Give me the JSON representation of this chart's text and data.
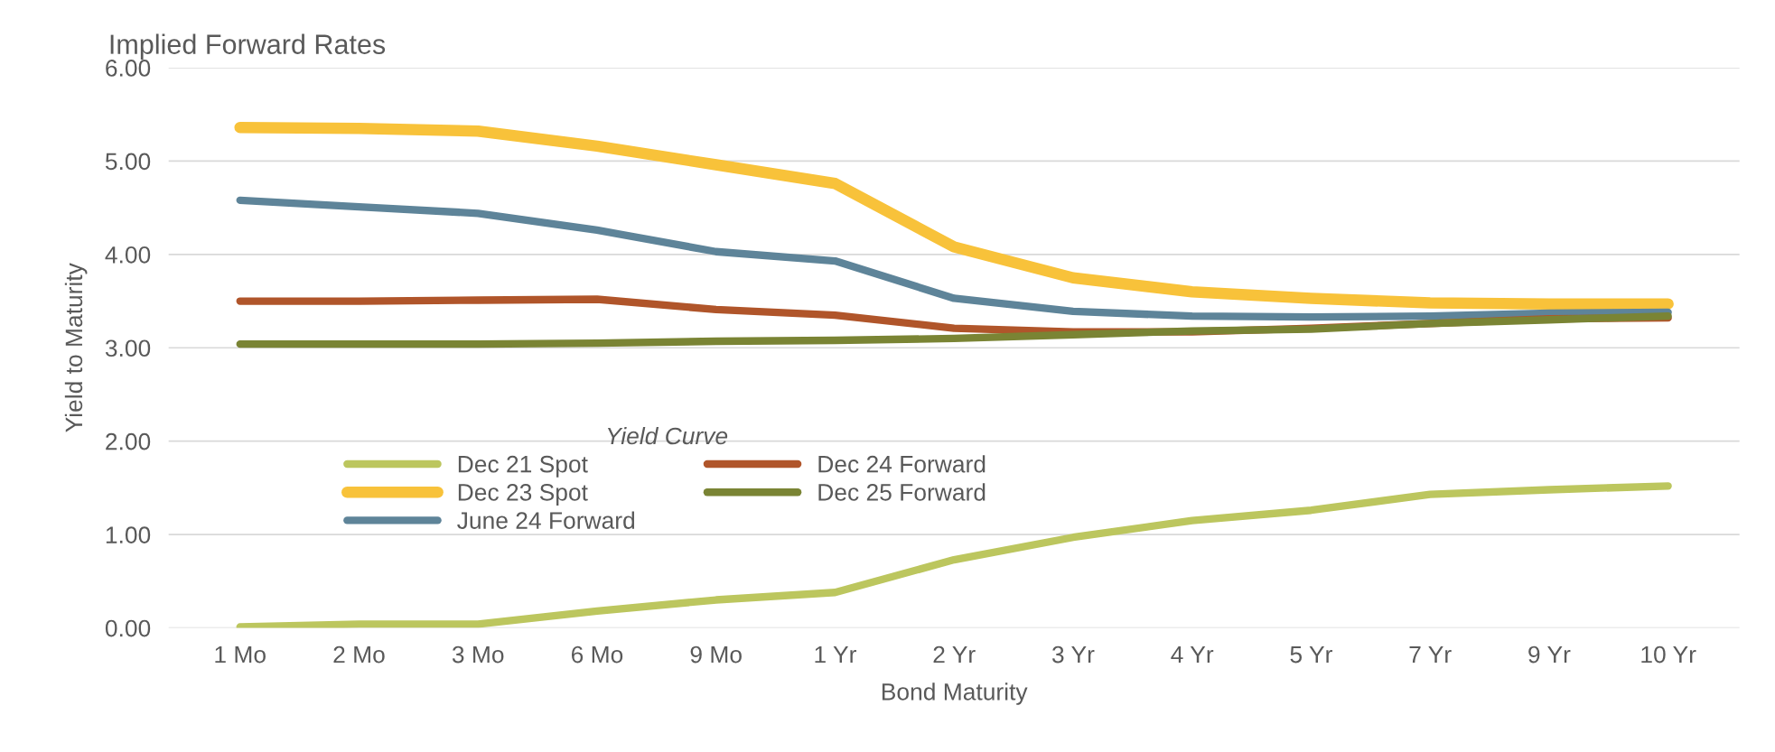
{
  "chart_data": {
    "type": "line",
    "title": "Implied Forward Rates",
    "xlabel": "Bond Maturity",
    "ylabel": "Yield to Maturity",
    "legend_title": "Yield Curve",
    "categories": [
      "1 Mo",
      "2 Mo",
      "3 Mo",
      "6 Mo",
      "9 Mo",
      "1 Yr",
      "2 Yr",
      "3 Yr",
      "4 Yr",
      "5 Yr",
      "7 Yr",
      "9 Yr",
      "10 Yr"
    ],
    "series": [
      {
        "name": "Dec 21 Spot",
        "color": "#bcc65e",
        "values": [
          0.01,
          0.04,
          0.04,
          0.18,
          0.3,
          0.38,
          0.73,
          0.97,
          1.15,
          1.26,
          1.43,
          1.48,
          1.52
        ]
      },
      {
        "name": "Dec 23 Spot",
        "color": "#f8c23a",
        "values": [
          5.36,
          5.35,
          5.32,
          5.16,
          4.96,
          4.76,
          4.08,
          3.75,
          3.6,
          3.53,
          3.48,
          3.47,
          3.47
        ]
      },
      {
        "name": "June 24 Forward",
        "color": "#5e8499",
        "values": [
          4.58,
          4.51,
          4.44,
          4.26,
          4.03,
          3.93,
          3.53,
          3.39,
          3.34,
          3.33,
          3.34,
          3.37,
          3.38
        ]
      },
      {
        "name": "Dec 24 Forward",
        "color": "#b0552a",
        "values": [
          3.5,
          3.5,
          3.51,
          3.52,
          3.41,
          3.35,
          3.21,
          3.17,
          3.17,
          3.21,
          3.26,
          3.31,
          3.32
        ]
      },
      {
        "name": "Dec 25 Forward",
        "color": "#7a8434",
        "values": [
          3.04,
          3.04,
          3.04,
          3.05,
          3.07,
          3.08,
          3.1,
          3.14,
          3.18,
          3.2,
          3.26,
          3.3,
          3.34
        ]
      }
    ],
    "ylim": [
      0,
      6
    ],
    "yticks": [
      {
        "value": 0,
        "label": "0.00"
      },
      {
        "value": 1,
        "label": "1.00"
      },
      {
        "value": 2,
        "label": "2.00"
      },
      {
        "value": 3,
        "label": "3.00"
      },
      {
        "value": 4,
        "label": "4.00"
      },
      {
        "value": 5,
        "label": "5.00"
      },
      {
        "value": 6,
        "label": "6.00"
      }
    ],
    "grid": "y",
    "legend": "bottom left",
    "marker": "none",
    "line_style": "solid"
  }
}
